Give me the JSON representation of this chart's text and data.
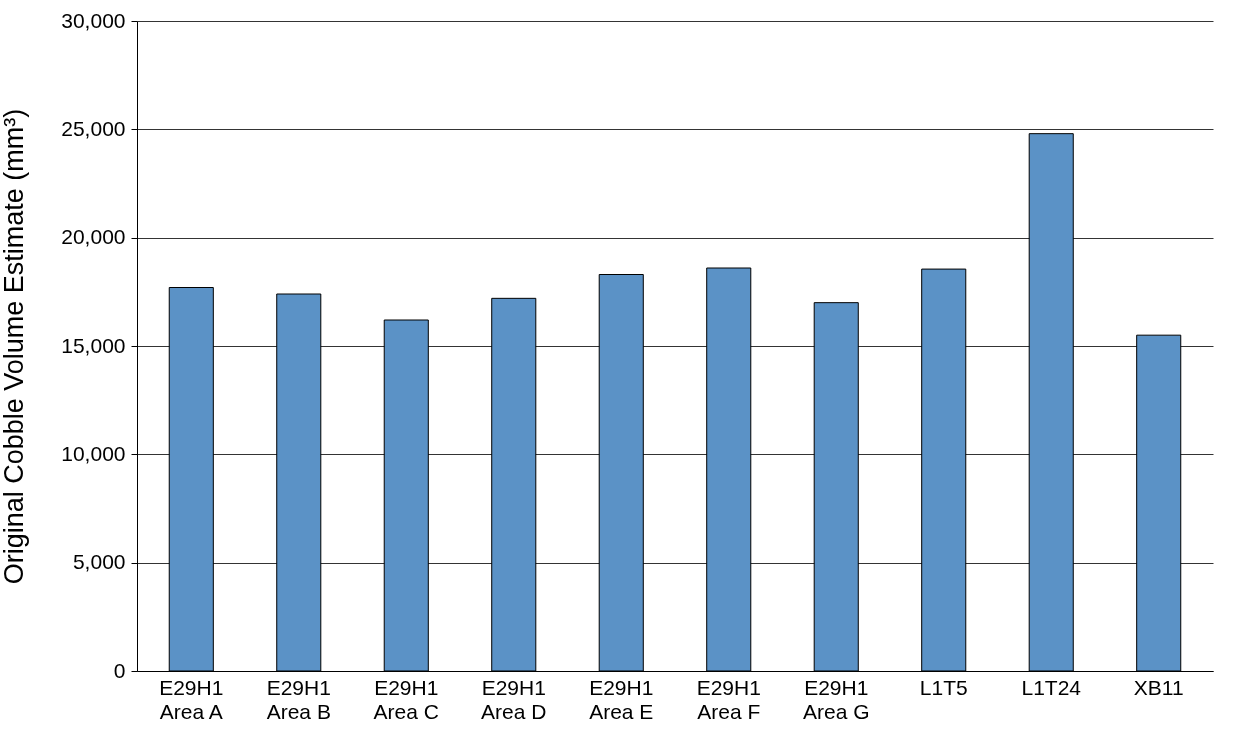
{
  "chart_data": {
    "type": "bar",
    "ylabel": "Original Cobble Volume Estimate (mm³)",
    "categories": [
      "E29H1\nArea A",
      "E29H1\nArea B",
      "E29H1\nArea C",
      "E29H1\nArea D",
      "E29H1\nArea E",
      "E29H1\nArea F",
      "E29H1\nArea G",
      "L1T5",
      "L1T24",
      "XB11"
    ],
    "values": [
      17700,
      17400,
      16200,
      17200,
      18300,
      18600,
      17000,
      18550,
      24800,
      15500
    ],
    "color": "#5b92c6",
    "ylim": [
      0,
      30000
    ],
    "yticks": [
      0,
      {
        "value": 5000,
        "label": "5,000"
      },
      {
        "value": 10000,
        "label": "10,000"
      },
      {
        "value": 15000,
        "label": "15,000"
      },
      {
        "value": 20000,
        "label": "20,000"
      },
      {
        "value": 25000,
        "label": "25,000"
      },
      {
        "value": 30000,
        "label": "30,000"
      }
    ],
    "grid": "y"
  }
}
